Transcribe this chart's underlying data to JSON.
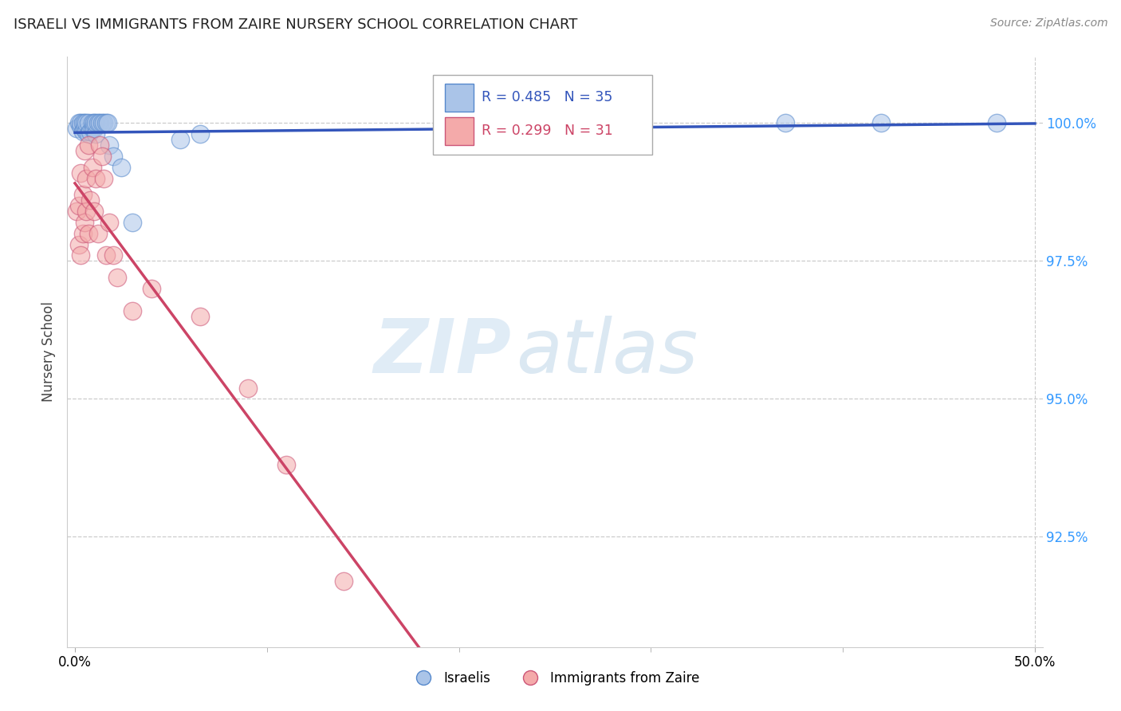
{
  "title": "ISRAELI VS IMMIGRANTS FROM ZAIRE NURSERY SCHOOL CORRELATION CHART",
  "source": "Source: ZipAtlas.com",
  "ylabel": "Nursery School",
  "ytick_labels": [
    "100.0%",
    "97.5%",
    "95.0%",
    "92.5%"
  ],
  "ytick_values": [
    1.0,
    0.975,
    0.95,
    0.925
  ],
  "xlim": [
    0.0,
    0.5
  ],
  "ylim": [
    0.905,
    1.012
  ],
  "legend_blue_label": "Israelis",
  "legend_pink_label": "Immigrants from Zaire",
  "annotation_blue": "R = 0.485   N = 35",
  "annotation_pink": "R = 0.299   N = 31",
  "watermark_zip": "ZIP",
  "watermark_atlas": "atlas",
  "blue_color": "#aac4e8",
  "blue_edge": "#5588cc",
  "pink_color": "#f4aaaa",
  "pink_edge": "#cc5577",
  "trendline_blue": "#3355bb",
  "trendline_pink": "#cc4466",
  "israelis_x": [
    0.001,
    0.002,
    0.003,
    0.003,
    0.004,
    0.004,
    0.005,
    0.005,
    0.006,
    0.006,
    0.007,
    0.007,
    0.008,
    0.009,
    0.009,
    0.01,
    0.01,
    0.011,
    0.011,
    0.012,
    0.013,
    0.014,
    0.015,
    0.016,
    0.017,
    0.018,
    0.02,
    0.024,
    0.03,
    0.055,
    0.065,
    0.22,
    0.37,
    0.42,
    0.48
  ],
  "israelis_y": [
    0.999,
    1.0,
    0.9995,
    1.0,
    0.9985,
    1.0,
    0.999,
    1.0,
    0.9985,
    1.0,
    0.998,
    1.0,
    0.9985,
    0.999,
    1.0,
    0.999,
    1.0,
    0.998,
    1.0,
    1.0,
    1.0,
    1.0,
    1.0,
    1.0,
    1.0,
    0.996,
    0.994,
    0.992,
    0.982,
    0.997,
    0.998,
    1.0,
    1.0,
    1.0,
    1.0
  ],
  "zaire_x": [
    0.001,
    0.002,
    0.002,
    0.003,
    0.003,
    0.004,
    0.004,
    0.005,
    0.005,
    0.006,
    0.006,
    0.007,
    0.007,
    0.008,
    0.009,
    0.01,
    0.011,
    0.012,
    0.013,
    0.014,
    0.015,
    0.016,
    0.018,
    0.02,
    0.022,
    0.03,
    0.04,
    0.065,
    0.09,
    0.11,
    0.14
  ],
  "zaire_y": [
    0.984,
    0.978,
    0.985,
    0.976,
    0.991,
    0.98,
    0.987,
    0.982,
    0.995,
    0.984,
    0.99,
    0.98,
    0.996,
    0.986,
    0.992,
    0.984,
    0.99,
    0.98,
    0.996,
    0.994,
    0.99,
    0.976,
    0.982,
    0.976,
    0.972,
    0.966,
    0.97,
    0.965,
    0.952,
    0.938,
    0.917
  ]
}
